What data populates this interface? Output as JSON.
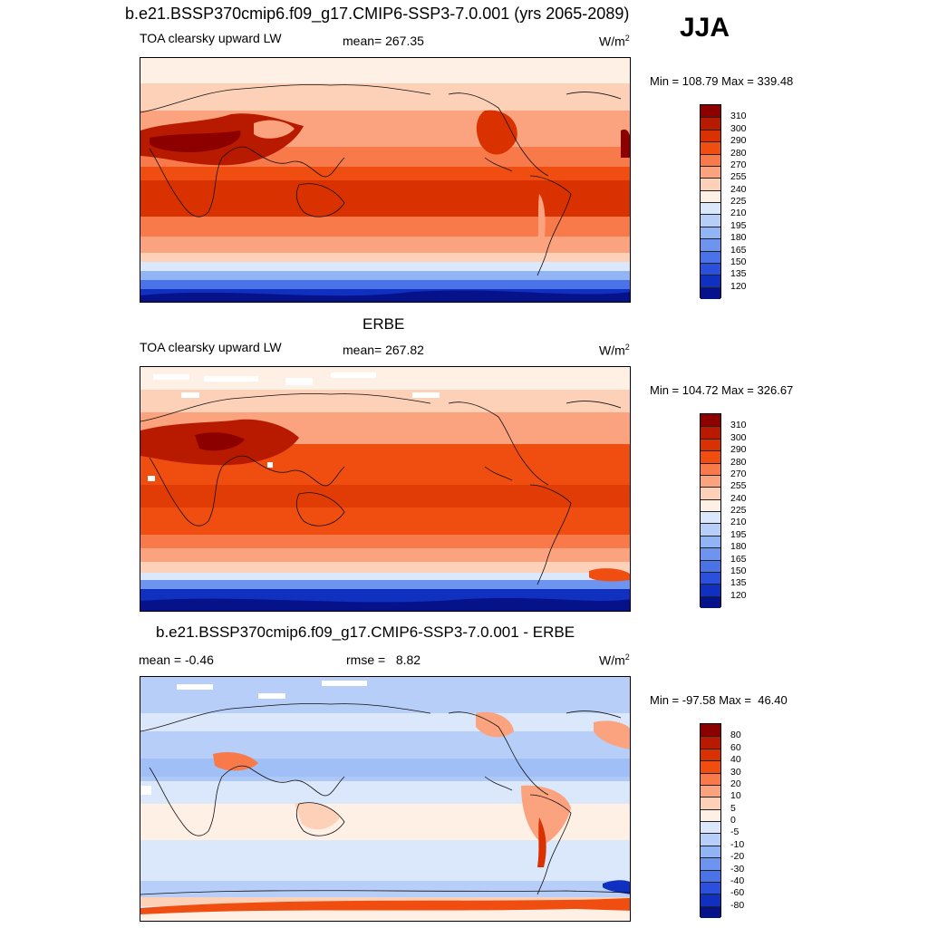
{
  "main_title": "b.e21.BSSP370cmip6.f09_g17.CMIP6-SSP3-7.0.001 (yrs 2065-2089)",
  "season": "JJA",
  "panels": [
    {
      "left_label": "TOA clearsky upward LW",
      "center_label": "mean= 267.35",
      "units": "W/m",
      "units_sup": "2",
      "minmax": "Min = 108.79 Max = 339.48"
    },
    {
      "title": "ERBE",
      "left_label": "TOA clearsky upward LW",
      "center_label": "mean= 267.82",
      "units": "W/m",
      "units_sup": "2",
      "minmax": "Min = 104.72 Max = 326.67"
    },
    {
      "title": "b.e21.BSSP370cmip6.f09_g17.CMIP6-SSP3-7.0.001 - ERBE",
      "left_label": "mean =  -0.46",
      "center_label": "rmse =   8.82",
      "units": "W/m",
      "units_sup": "2",
      "minmax": "Min = -97.58 Max =  46.40"
    }
  ],
  "colorbars": {
    "absolute": {
      "labels": [
        "310",
        "300",
        "290",
        "280",
        "270",
        "255",
        "240",
        "225",
        "210",
        "195",
        "180",
        "165",
        "150",
        "135",
        "120"
      ],
      "colors": [
        "#8c0000",
        "#b81a00",
        "#d93200",
        "#f04d10",
        "#f8794a",
        "#fba27e",
        "#fcd1b8",
        "#fff0e6",
        "#dbe8fb",
        "#b7cff8",
        "#91b4f5",
        "#6d95f0",
        "#4a73e8",
        "#2a50dc",
        "#1030c0",
        "#05128a"
      ]
    },
    "difference": {
      "labels": [
        "80",
        "60",
        "40",
        "30",
        "20",
        "10",
        "5",
        "0",
        "-5",
        "-10",
        "-20",
        "-30",
        "-40",
        "-60",
        "-80"
      ],
      "colors": [
        "#8c0000",
        "#b81a00",
        "#d93200",
        "#f04d10",
        "#f8794a",
        "#fba27e",
        "#fcd1b8",
        "#fff0e6",
        "#dbe8fb",
        "#b7cff8",
        "#91b4f5",
        "#6d95f0",
        "#4a73e8",
        "#2a50dc",
        "#1030c0",
        "#05128a"
      ]
    }
  }
}
